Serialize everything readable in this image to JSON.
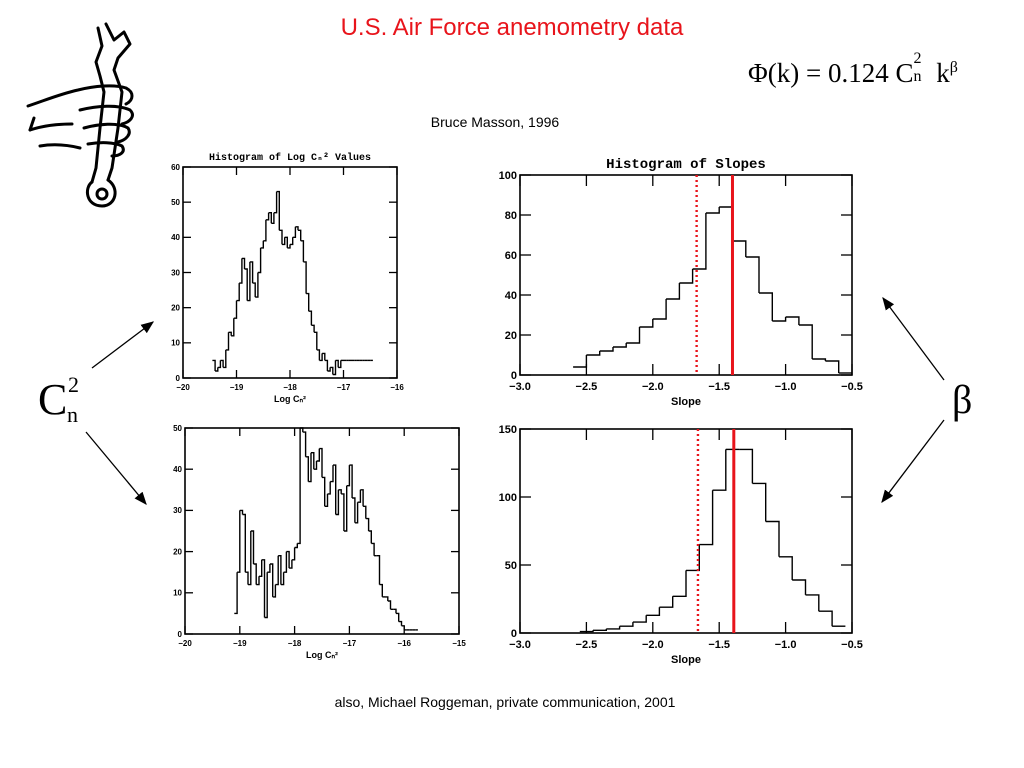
{
  "page": {
    "title": "U.S. Air Force anemometry data",
    "formula": {
      "lhs": "Φ(k) = 0.124 C",
      "cn_sup": "2",
      "cn_sub": "n",
      "tail": "k",
      "tail_sup": "β"
    },
    "credit": "Bruce Masson, 1996",
    "credit2": "also, Michael Roggeman, private communication, 2001",
    "cn_label": {
      "base": "C",
      "sup": "2",
      "sub": "n"
    },
    "beta_label": "β",
    "colors": {
      "title": "#e8141b",
      "marker": "#e8141b"
    },
    "icon": "wrench-in-hand-icon"
  },
  "chart_data": [
    {
      "type": "step-histogram",
      "title": "Histogram of Log Cₙ² Values",
      "xlabel": "Log Cₙ²",
      "xlim": [
        -20,
        -16
      ],
      "ylim": [
        0,
        60
      ],
      "xticks": [
        "−20",
        "−19",
        "−18",
        "−17",
        "−16"
      ],
      "yticks": [
        "0",
        "10",
        "20",
        "30",
        "40",
        "50",
        "60"
      ],
      "x": [
        -19.45,
        -19.4,
        -19.35,
        -19.3,
        -19.25,
        -19.2,
        -19.15,
        -19.1,
        -19.05,
        -19.0,
        -18.95,
        -18.9,
        -18.85,
        -18.8,
        -18.75,
        -18.7,
        -18.65,
        -18.6,
        -18.55,
        -18.5,
        -18.45,
        -18.4,
        -18.35,
        -18.3,
        -18.25,
        -18.2,
        -18.15,
        -18.1,
        -18.05,
        -18.0,
        -17.95,
        -17.9,
        -17.85,
        -17.8,
        -17.75,
        -17.7,
        -17.65,
        -17.6,
        -17.55,
        -17.5,
        -17.45,
        -17.4,
        -17.35,
        -17.3,
        -17.25,
        -17.2,
        -17.15,
        -17.1,
        -17.05,
        -17.0,
        -16.95,
        -16.9,
        -16.85,
        -16.8,
        -16.75,
        -16.7,
        -16.65,
        -16.6,
        -16.55,
        -16.5
      ],
      "values": [
        5,
        2,
        3,
        5,
        3,
        8,
        13,
        12,
        17,
        22,
        27,
        34,
        31,
        22,
        33,
        27,
        23,
        30,
        37,
        39,
        45,
        47,
        44,
        47,
        53,
        42,
        38,
        40,
        37,
        38,
        40,
        43,
        42,
        39,
        33,
        24,
        19,
        15,
        13,
        8,
        5,
        7,
        5,
        2,
        3,
        1,
        5,
        3,
        5,
        5,
        5,
        5,
        5,
        5,
        5,
        5,
        5,
        5,
        5,
        5
      ]
    },
    {
      "type": "step-histogram",
      "title": "Histogram of Slopes",
      "xlabel": "Slope",
      "xlim": [
        -3.0,
        -0.5
      ],
      "ylim": [
        0,
        100
      ],
      "xticks": [
        "−3.0",
        "−2.5",
        "−2.0",
        "−1.5",
        "−1.0",
        "−0.5"
      ],
      "yticks": [
        "0",
        "20",
        "40",
        "60",
        "80",
        "100"
      ],
      "x": [
        -2.6,
        -2.5,
        -2.4,
        -2.3,
        -2.2,
        -2.1,
        -2.0,
        -1.9,
        -1.8,
        -1.7,
        -1.6,
        -1.5,
        -1.4,
        -1.3,
        -1.2,
        -1.1,
        -1.0,
        -0.9,
        -0.8,
        -0.7,
        -0.6
      ],
      "values": [
        4,
        10,
        12,
        14,
        16,
        24,
        28,
        38,
        46,
        53,
        81,
        84,
        67,
        59,
        41,
        27,
        29,
        25,
        8,
        7,
        1
      ],
      "markers": {
        "dotted": -1.67,
        "solid": -1.4
      }
    },
    {
      "type": "step-histogram",
      "xlabel": "Log Cₙ²",
      "xlim": [
        -20,
        -15
      ],
      "ylim": [
        0,
        50
      ],
      "xticks": [
        "−20",
        "−19",
        "−18",
        "−17",
        "−16",
        "−15"
      ],
      "yticks": [
        "0",
        "10",
        "20",
        "30",
        "40",
        "50"
      ],
      "x": [
        -19.1,
        -19.05,
        -19.0,
        -18.95,
        -18.9,
        -18.85,
        -18.8,
        -18.75,
        -18.7,
        -18.65,
        -18.6,
        -18.55,
        -18.5,
        -18.45,
        -18.4,
        -18.35,
        -18.3,
        -18.25,
        -18.2,
        -18.15,
        -18.1,
        -18.05,
        -18.0,
        -17.95,
        -17.9,
        -17.85,
        -17.8,
        -17.75,
        -17.7,
        -17.65,
        -17.6,
        -17.55,
        -17.5,
        -17.45,
        -17.4,
        -17.35,
        -17.3,
        -17.25,
        -17.2,
        -17.15,
        -17.1,
        -17.05,
        -17.0,
        -16.95,
        -16.9,
        -16.85,
        -16.8,
        -16.75,
        -16.7,
        -16.65,
        -16.6,
        -16.55,
        -16.5,
        -16.45,
        -16.4,
        -16.35,
        -16.3,
        -16.25,
        -16.2,
        -16.15,
        -16.1,
        -16.05,
        -16.0,
        -15.95,
        -15.9,
        -15.85,
        -15.8
      ],
      "values": [
        5,
        15,
        30,
        29,
        15,
        12,
        25,
        17,
        12,
        14,
        18,
        4,
        15,
        17,
        9,
        12,
        19,
        12,
        15,
        20,
        16,
        18,
        21,
        22,
        50,
        49,
        43,
        37,
        44,
        40,
        42,
        45,
        38,
        31,
        34,
        37,
        41,
        29,
        35,
        34,
        25,
        36,
        41,
        33,
        27,
        32,
        35,
        31,
        28,
        25,
        22,
        19,
        19,
        12,
        9,
        9,
        8,
        6,
        6,
        5,
        3,
        2,
        1,
        1,
        1,
        1,
        1
      ]
    },
    {
      "type": "step-histogram",
      "xlabel": "Slope",
      "xlim": [
        -3.0,
        -0.5
      ],
      "ylim": [
        0,
        150
      ],
      "xticks": [
        "−3.0",
        "−2.5",
        "−2.0",
        "−1.5",
        "−1.0",
        "−0.5"
      ],
      "yticks": [
        "0",
        "50",
        "100",
        "150"
      ],
      "x": [
        -2.55,
        -2.45,
        -2.35,
        -2.25,
        -2.15,
        -2.05,
        -1.95,
        -1.85,
        -1.75,
        -1.65,
        -1.55,
        -1.45,
        -1.35,
        -1.25,
        -1.15,
        -1.05,
        -0.95,
        -0.85,
        -0.75,
        -0.65
      ],
      "values": [
        1,
        2,
        3,
        5,
        8,
        13,
        19,
        27,
        46,
        65,
        105,
        135,
        135,
        110,
        82,
        56,
        39,
        28,
        16,
        5
      ],
      "markers": {
        "dotted": -1.66,
        "solid": -1.39
      }
    }
  ]
}
